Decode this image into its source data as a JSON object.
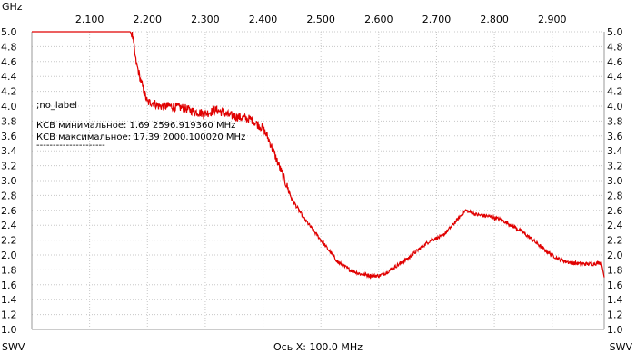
{
  "chart_data": {
    "type": "line",
    "x_unit_label": "GHz",
    "x_axis_title": "Ось X: 100.0 MHz",
    "y_left_label": "SWV",
    "y_right_label": "SWV",
    "xlim": [
      2.0,
      2.99
    ],
    "ylim": [
      1.0,
      5.0
    ],
    "x_ticks": [
      "2.100",
      "2.200",
      "2.300",
      "2.400",
      "2.500",
      "2.600",
      "2.700",
      "2.800",
      "2.900"
    ],
    "x_tick_values": [
      2.1,
      2.2,
      2.3,
      2.4,
      2.5,
      2.6,
      2.7,
      2.8,
      2.9
    ],
    "y_ticks": [
      "5.0",
      "4.8",
      "4.6",
      "4.4",
      "4.2",
      "4.0",
      "3.8",
      "3.6",
      "3.4",
      "3.2",
      "3.0",
      "2.8",
      "2.6",
      "2.4",
      "2.2",
      "2.0",
      "1.8",
      "1.6",
      "1.4",
      "1.2",
      "1.0"
    ],
    "y_tick_values": [
      5.0,
      4.8,
      4.6,
      4.4,
      4.2,
      4.0,
      3.8,
      3.6,
      3.4,
      3.2,
      3.0,
      2.8,
      2.6,
      2.4,
      2.2,
      2.0,
      1.8,
      1.6,
      1.4,
      1.2,
      1.0
    ],
    "grid": true,
    "series": [
      {
        "name": "",
        "color": "#e00000",
        "x": [
          2.0,
          2.17,
          2.174,
          2.18,
          2.19,
          2.2,
          2.21,
          2.22,
          2.24,
          2.26,
          2.28,
          2.3,
          2.32,
          2.34,
          2.36,
          2.38,
          2.4,
          2.41,
          2.43,
          2.45,
          2.47,
          2.49,
          2.51,
          2.53,
          2.55,
          2.57,
          2.59,
          2.6,
          2.61,
          2.63,
          2.65,
          2.67,
          2.69,
          2.71,
          2.73,
          2.75,
          2.76,
          2.77,
          2.79,
          2.81,
          2.83,
          2.85,
          2.87,
          2.89,
          2.91,
          2.93,
          2.95,
          2.97,
          2.985,
          2.99
        ],
        "y": [
          5.0,
          5.0,
          4.95,
          4.6,
          4.3,
          4.05,
          4.05,
          4.0,
          4.0,
          3.98,
          3.93,
          3.9,
          3.95,
          3.88,
          3.85,
          3.82,
          3.7,
          3.55,
          3.15,
          2.75,
          2.5,
          2.3,
          2.1,
          1.9,
          1.8,
          1.74,
          1.72,
          1.72,
          1.75,
          1.85,
          1.95,
          2.08,
          2.2,
          2.25,
          2.42,
          2.6,
          2.57,
          2.54,
          2.52,
          2.48,
          2.4,
          2.3,
          2.18,
          2.05,
          1.95,
          1.9,
          1.88,
          1.88,
          1.9,
          1.7
        ]
      }
    ],
    "annotations": [
      ";no_label",
      "КСВ минимальное: 1.69  2596.919360 MHz",
      "КСВ максимальное: 17.39  2000.100020 MHz",
      "---------------------"
    ]
  }
}
